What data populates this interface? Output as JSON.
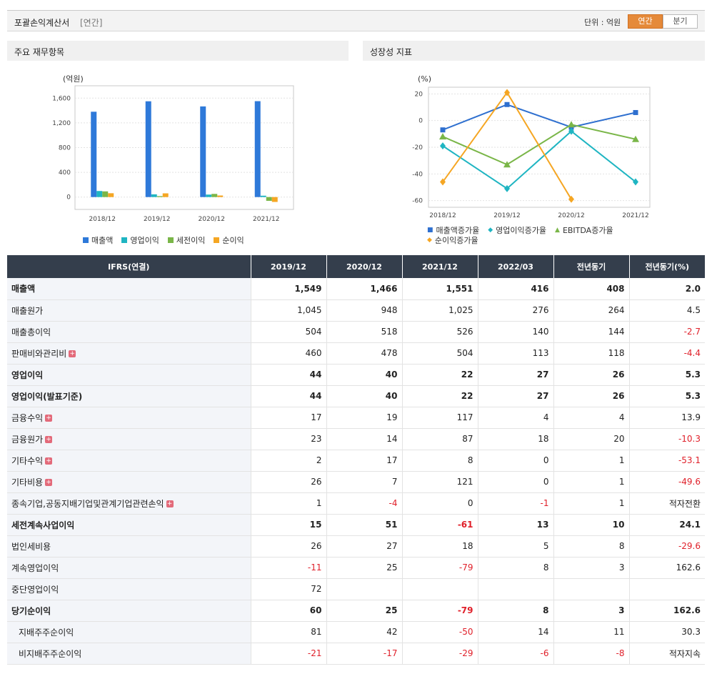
{
  "header": {
    "title": "포괄손익계산서",
    "period": "[연간]",
    "unit": "단위 : 억원",
    "tabs": [
      "연간",
      "분기"
    ],
    "active_tab": 0
  },
  "panels": {
    "left_title": "주요 재무항목",
    "right_title": "성장성 지표"
  },
  "colors": {
    "bar1": "#2e79d9",
    "bar2": "#1fb5c2",
    "bar3": "#7ab648",
    "bar4": "#f5a623",
    "header_bg": "#343e4c",
    "negative": "#e0202a",
    "accent": "#e58a3a"
  },
  "chart_data": [
    {
      "type": "bar",
      "ylabel": "(억원)",
      "categories": [
        "2018/12",
        "2019/12",
        "2020/12",
        "2021/12"
      ],
      "ylim": [
        -200,
        1800
      ],
      "yticks": [
        0,
        400,
        800,
        1200,
        1600
      ],
      "ytick_labels": [
        "0",
        "400",
        "800",
        "1,200",
        "1,600"
      ],
      "grid": true,
      "legend_position": "bottom",
      "series": [
        {
          "name": "매출액",
          "values": [
            1380,
            1549,
            1466,
            1551
          ]
        },
        {
          "name": "영업이익",
          "values": [
            98,
            44,
            40,
            22
          ]
        },
        {
          "name": "세전이익",
          "values": [
            92,
            15,
            51,
            -61
          ]
        },
        {
          "name": "순이익",
          "values": [
            62,
            60,
            25,
            -79
          ]
        }
      ]
    },
    {
      "type": "line",
      "ylabel": "(%)",
      "categories": [
        "2018/12",
        "2019/12",
        "2020/12",
        "2021/12"
      ],
      "ylim": [
        -65,
        25
      ],
      "yticks": [
        20,
        0,
        -20,
        -40,
        -60
      ],
      "ytick_labels": [
        "20",
        "0",
        "-20",
        "-40",
        "-60"
      ],
      "grid": true,
      "legend_position": "bottom",
      "series": [
        {
          "name": "매출액증가율",
          "values": [
            -7,
            12,
            -5,
            6
          ]
        },
        {
          "name": "영업이익증가율",
          "values": [
            -19,
            -51,
            -8,
            -46
          ]
        },
        {
          "name": "EBITDA증가율",
          "values": [
            -12,
            -33,
            -3,
            -14
          ]
        },
        {
          "name": "순이익증가율",
          "values": [
            -46,
            21,
            -59,
            null
          ]
        }
      ]
    }
  ],
  "table": {
    "columns": [
      "IFRS(연결)",
      "2019/12",
      "2020/12",
      "2021/12",
      "2022/03",
      "전년동기",
      "전년동기(%)"
    ],
    "rows": [
      {
        "label": "매출액",
        "bold": true,
        "values": [
          "1,549",
          "1,466",
          "1,551",
          "416",
          "408",
          "2.0"
        ]
      },
      {
        "label": "매출원가",
        "values": [
          "1,045",
          "948",
          "1,025",
          "276",
          "264",
          "4.5"
        ]
      },
      {
        "label": "매출총이익",
        "values": [
          "504",
          "518",
          "526",
          "140",
          "144",
          "-2.7"
        ]
      },
      {
        "label": "판매비와관리비",
        "expand": true,
        "values": [
          "460",
          "478",
          "504",
          "113",
          "118",
          "-4.4"
        ]
      },
      {
        "label": "영업이익",
        "bold": true,
        "values": [
          "44",
          "40",
          "22",
          "27",
          "26",
          "5.3"
        ]
      },
      {
        "label": "영업이익(발표기준)",
        "bold": true,
        "values": [
          "44",
          "40",
          "22",
          "27",
          "26",
          "5.3"
        ]
      },
      {
        "label": "금융수익",
        "expand": true,
        "values": [
          "17",
          "19",
          "117",
          "4",
          "4",
          "13.9"
        ]
      },
      {
        "label": "금융원가",
        "expand": true,
        "values": [
          "23",
          "14",
          "87",
          "18",
          "20",
          "-10.3"
        ]
      },
      {
        "label": "기타수익",
        "expand": true,
        "values": [
          "2",
          "17",
          "8",
          "0",
          "1",
          "-53.1"
        ]
      },
      {
        "label": "기타비용",
        "expand": true,
        "values": [
          "26",
          "7",
          "121",
          "0",
          "1",
          "-49.6"
        ]
      },
      {
        "label": "종속기업,공동지배기업및관계기업관련손익",
        "expand": true,
        "values": [
          "1",
          "-4",
          "0",
          "-1",
          "1",
          "적자전환"
        ]
      },
      {
        "label": "세전계속사업이익",
        "bold": true,
        "values": [
          "15",
          "51",
          "-61",
          "13",
          "10",
          "24.1"
        ]
      },
      {
        "label": "법인세비용",
        "values": [
          "26",
          "27",
          "18",
          "5",
          "8",
          "-29.6"
        ]
      },
      {
        "label": "계속영업이익",
        "values": [
          "-11",
          "25",
          "-79",
          "8",
          "3",
          "162.6"
        ]
      },
      {
        "label": "중단영업이익",
        "values": [
          "72",
          "",
          "",
          "",
          "",
          ""
        ]
      },
      {
        "label": "당기순이익",
        "bold": true,
        "values": [
          "60",
          "25",
          "-79",
          "8",
          "3",
          "162.6"
        ]
      },
      {
        "label": "지배주주순이익",
        "indent": true,
        "values": [
          "81",
          "42",
          "-50",
          "14",
          "11",
          "30.3"
        ]
      },
      {
        "label": "비지배주주순이익",
        "indent": true,
        "values": [
          "-21",
          "-17",
          "-29",
          "-6",
          "-8",
          "적자지속"
        ]
      }
    ]
  }
}
